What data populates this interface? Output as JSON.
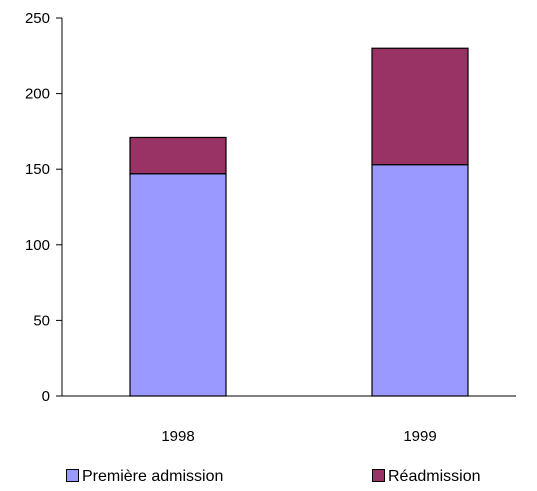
{
  "chart_data": {
    "type": "bar",
    "stacked": true,
    "categories": [
      "1998",
      "1999"
    ],
    "series": [
      {
        "name": "Première admission",
        "values": [
          147,
          153
        ],
        "color": "#9999ff"
      },
      {
        "name": "Réadmission",
        "values": [
          24,
          77
        ],
        "color": "#993366"
      }
    ],
    "yticks": [
      0,
      50,
      100,
      150,
      200,
      250
    ],
    "ylim": [
      0,
      250
    ],
    "title": "",
    "xlabel": "",
    "ylabel": "",
    "legend_position": "bottom",
    "grid": false
  }
}
